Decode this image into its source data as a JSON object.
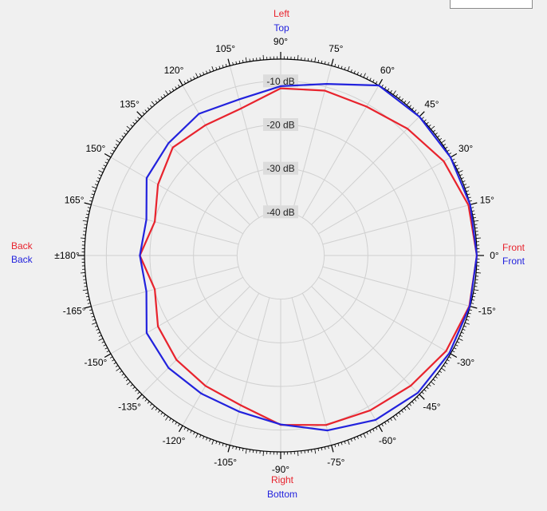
{
  "chart_data": {
    "type": "polar",
    "theta_unit": "deg",
    "r_unit": "dB",
    "r_range": [
      -50,
      -5
    ],
    "grid": true,
    "angle_labels": [
      "90°",
      "75°",
      "60°",
      "45°",
      "30°",
      "15°",
      "0°",
      "-15°",
      "-30°",
      "-45°",
      "-60°",
      "-75°",
      "-90°",
      "-105°",
      "-120°",
      "-135°",
      "-150°",
      "-165°",
      "±180°",
      "165°",
      "150°",
      "135°",
      "120°",
      "105°"
    ],
    "angle_values": [
      90,
      75,
      60,
      45,
      30,
      15,
      0,
      -15,
      -30,
      -45,
      -60,
      -75,
      -90,
      -105,
      -120,
      -135,
      -150,
      -165,
      180,
      165,
      150,
      135,
      120,
      105
    ],
    "radial_labels": [
      "-10 dB",
      "-20 dB",
      "-30 dB",
      "-40 dB"
    ],
    "radial_values": [
      -10,
      -20,
      -30,
      -40
    ],
    "direction_labels": {
      "top": {
        "red": "Left",
        "blue": "Top"
      },
      "bottom": {
        "red": "Right",
        "blue": "Bottom"
      },
      "left": {
        "red": "Back",
        "blue": "Back"
      },
      "right": {
        "red": "Front",
        "blue": "Front"
      }
    },
    "series": [
      {
        "color": "#e8232d",
        "theta": [
          0,
          15,
          30,
          45,
          60,
          75,
          90,
          105,
          120,
          135,
          150,
          165,
          180,
          -165,
          -150,
          -135,
          -120,
          -105,
          -90,
          -75,
          -60,
          -45,
          -30,
          -15
        ],
        "r": [
          -5.0,
          -5.4,
          -6.8,
          -8.9,
          -10.6,
          -10.9,
          -11.7,
          -15.1,
          -15.5,
          -15.0,
          -17.5,
          -20.1,
          -17.7,
          -20.1,
          -17.5,
          -16.2,
          -15.5,
          -14.5,
          -11.2,
          -9.8,
          -9.0,
          -7.8,
          -6.2,
          -5.2
        ]
      },
      {
        "color": "#2222dd",
        "theta": [
          0,
          15,
          30,
          45,
          60,
          75,
          90,
          105,
          120,
          135,
          150,
          165,
          180,
          -165,
          -150,
          -135,
          -120,
          -105,
          -90,
          -75,
          -60,
          -45,
          -30,
          -15
        ],
        "r": [
          -5.0,
          -5.0,
          -5.0,
          -5.0,
          -5.0,
          -9.3,
          -11.2,
          -13.0,
          -12.5,
          -13.6,
          -14.5,
          -18.1,
          -17.7,
          -18.1,
          -14.5,
          -13.6,
          -13.5,
          -13.0,
          -11.3,
          -8.5,
          -6.5,
          -5.5,
          -5.3,
          -5.1
        ]
      }
    ]
  },
  "colors": {
    "red": "#e8232d",
    "blue": "#2222dd",
    "grid": "#d0d0d0",
    "ring_label_bg": "#dcdcdc"
  }
}
